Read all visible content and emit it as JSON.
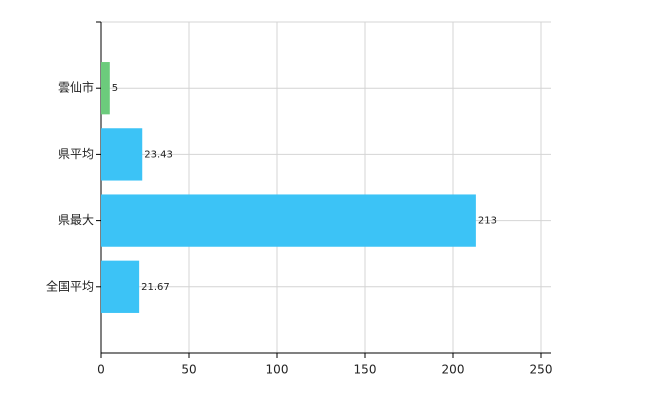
{
  "chart_data": {
    "type": "bar",
    "orientation": "horizontal",
    "categories": [
      "雲仙市",
      "県平均",
      "県最大",
      "全国平均"
    ],
    "values": [
      5,
      23.43,
      213,
      21.67
    ],
    "colors": [
      "#6ccb7c",
      "#3cc3f6",
      "#3cc3f6",
      "#3cc3f6"
    ],
    "xlim": [
      0,
      250
    ],
    "xticks": [
      0,
      50,
      100,
      150,
      200,
      250
    ],
    "grid": true
  }
}
